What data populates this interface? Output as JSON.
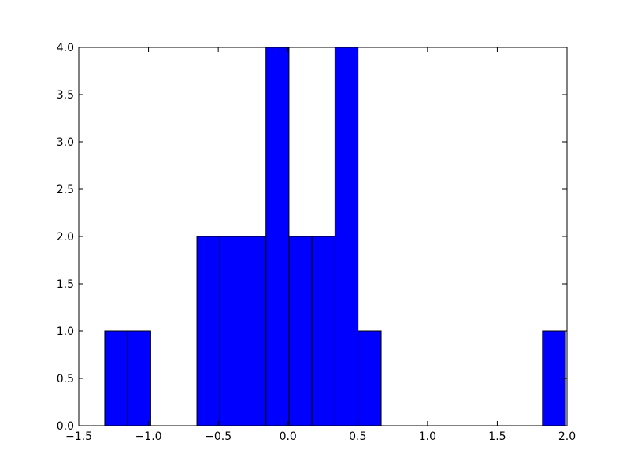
{
  "chart_data": {
    "type": "histogram",
    "bins": [
      -1.314,
      -1.149,
      -0.984,
      -0.818,
      -0.653,
      -0.488,
      -0.323,
      -0.158,
      0.007,
      0.172,
      0.337,
      0.502,
      0.668,
      0.833,
      0.998,
      1.163,
      1.328,
      1.493,
      1.659,
      1.824,
      1.989
    ],
    "counts": [
      1,
      1,
      0,
      0,
      2,
      2,
      2,
      4,
      2,
      2,
      4,
      1,
      0,
      0,
      0,
      0,
      0,
      0,
      0,
      1
    ],
    "color": "#0000ff",
    "xlim": [
      -1.5,
      2.0
    ],
    "xticks": [
      {
        "value": -1.5,
        "label": "−1.5"
      },
      {
        "value": -1.0,
        "label": "−1.0"
      },
      {
        "value": -0.5,
        "label": "−0.5"
      },
      {
        "value": 0,
        "label": "0.0"
      },
      0.5,
      {
        "value": 1.0,
        "label": "1.0"
      },
      1.5,
      {
        "value": 2.0,
        "label": "2.0"
      }
    ],
    "ylim": [
      0,
      4
    ],
    "yticks": [
      {
        "value": 0,
        "label": "0.0"
      },
      0.5,
      {
        "value": 1,
        "label": "1.0"
      },
      1.5,
      {
        "value": 2,
        "label": "2.0"
      },
      2.5,
      {
        "value": 3,
        "label": "3.0"
      },
      3.5,
      {
        "value": 4,
        "label": "4.0"
      }
    ],
    "grid": false
  }
}
